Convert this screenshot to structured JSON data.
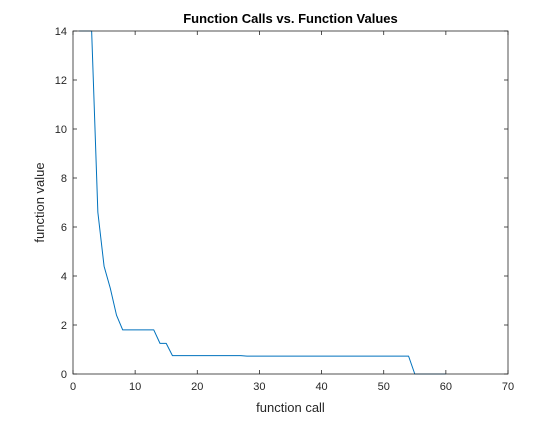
{
  "chart_data": {
    "type": "line",
    "title": "Function Calls vs. Function Values",
    "xlabel": "function call",
    "ylabel": "function value",
    "xlim": [
      0,
      70
    ],
    "ylim": [
      0,
      14
    ],
    "xticks": [
      0,
      10,
      20,
      30,
      40,
      50,
      60,
      70
    ],
    "yticks": [
      0,
      2,
      4,
      6,
      8,
      10,
      12,
      14
    ],
    "grid": false,
    "series": [
      {
        "color": "#0072bd",
        "x": [
          1,
          2,
          3,
          4,
          5,
          6,
          7,
          8,
          9,
          10,
          11,
          12,
          13,
          14,
          15,
          16,
          17,
          18,
          19,
          20,
          21,
          22,
          23,
          24,
          25,
          26,
          27,
          28,
          29,
          30,
          31,
          32,
          33,
          34,
          35,
          36,
          37,
          38,
          39,
          40,
          41,
          42,
          43,
          44,
          45,
          46,
          47,
          48,
          49,
          50,
          51,
          52,
          53,
          54,
          55,
          56,
          57,
          58,
          59,
          60
        ],
        "y": [
          14,
          14,
          14,
          6.6,
          4.4,
          3.5,
          2.4,
          1.8,
          1.8,
          1.8,
          1.8,
          1.8,
          1.8,
          1.25,
          1.25,
          0.75,
          0.75,
          0.75,
          0.75,
          0.75,
          0.75,
          0.75,
          0.75,
          0.75,
          0.75,
          0.75,
          0.75,
          0.73,
          0.73,
          0.73,
          0.73,
          0.73,
          0.73,
          0.73,
          0.73,
          0.73,
          0.73,
          0.73,
          0.73,
          0.73,
          0.73,
          0.73,
          0.73,
          0.73,
          0.73,
          0.73,
          0.73,
          0.73,
          0.73,
          0.73,
          0.73,
          0.73,
          0.73,
          0.73,
          0.0,
          0.0,
          0.0,
          0.0,
          0.0,
          0.0
        ]
      }
    ]
  }
}
